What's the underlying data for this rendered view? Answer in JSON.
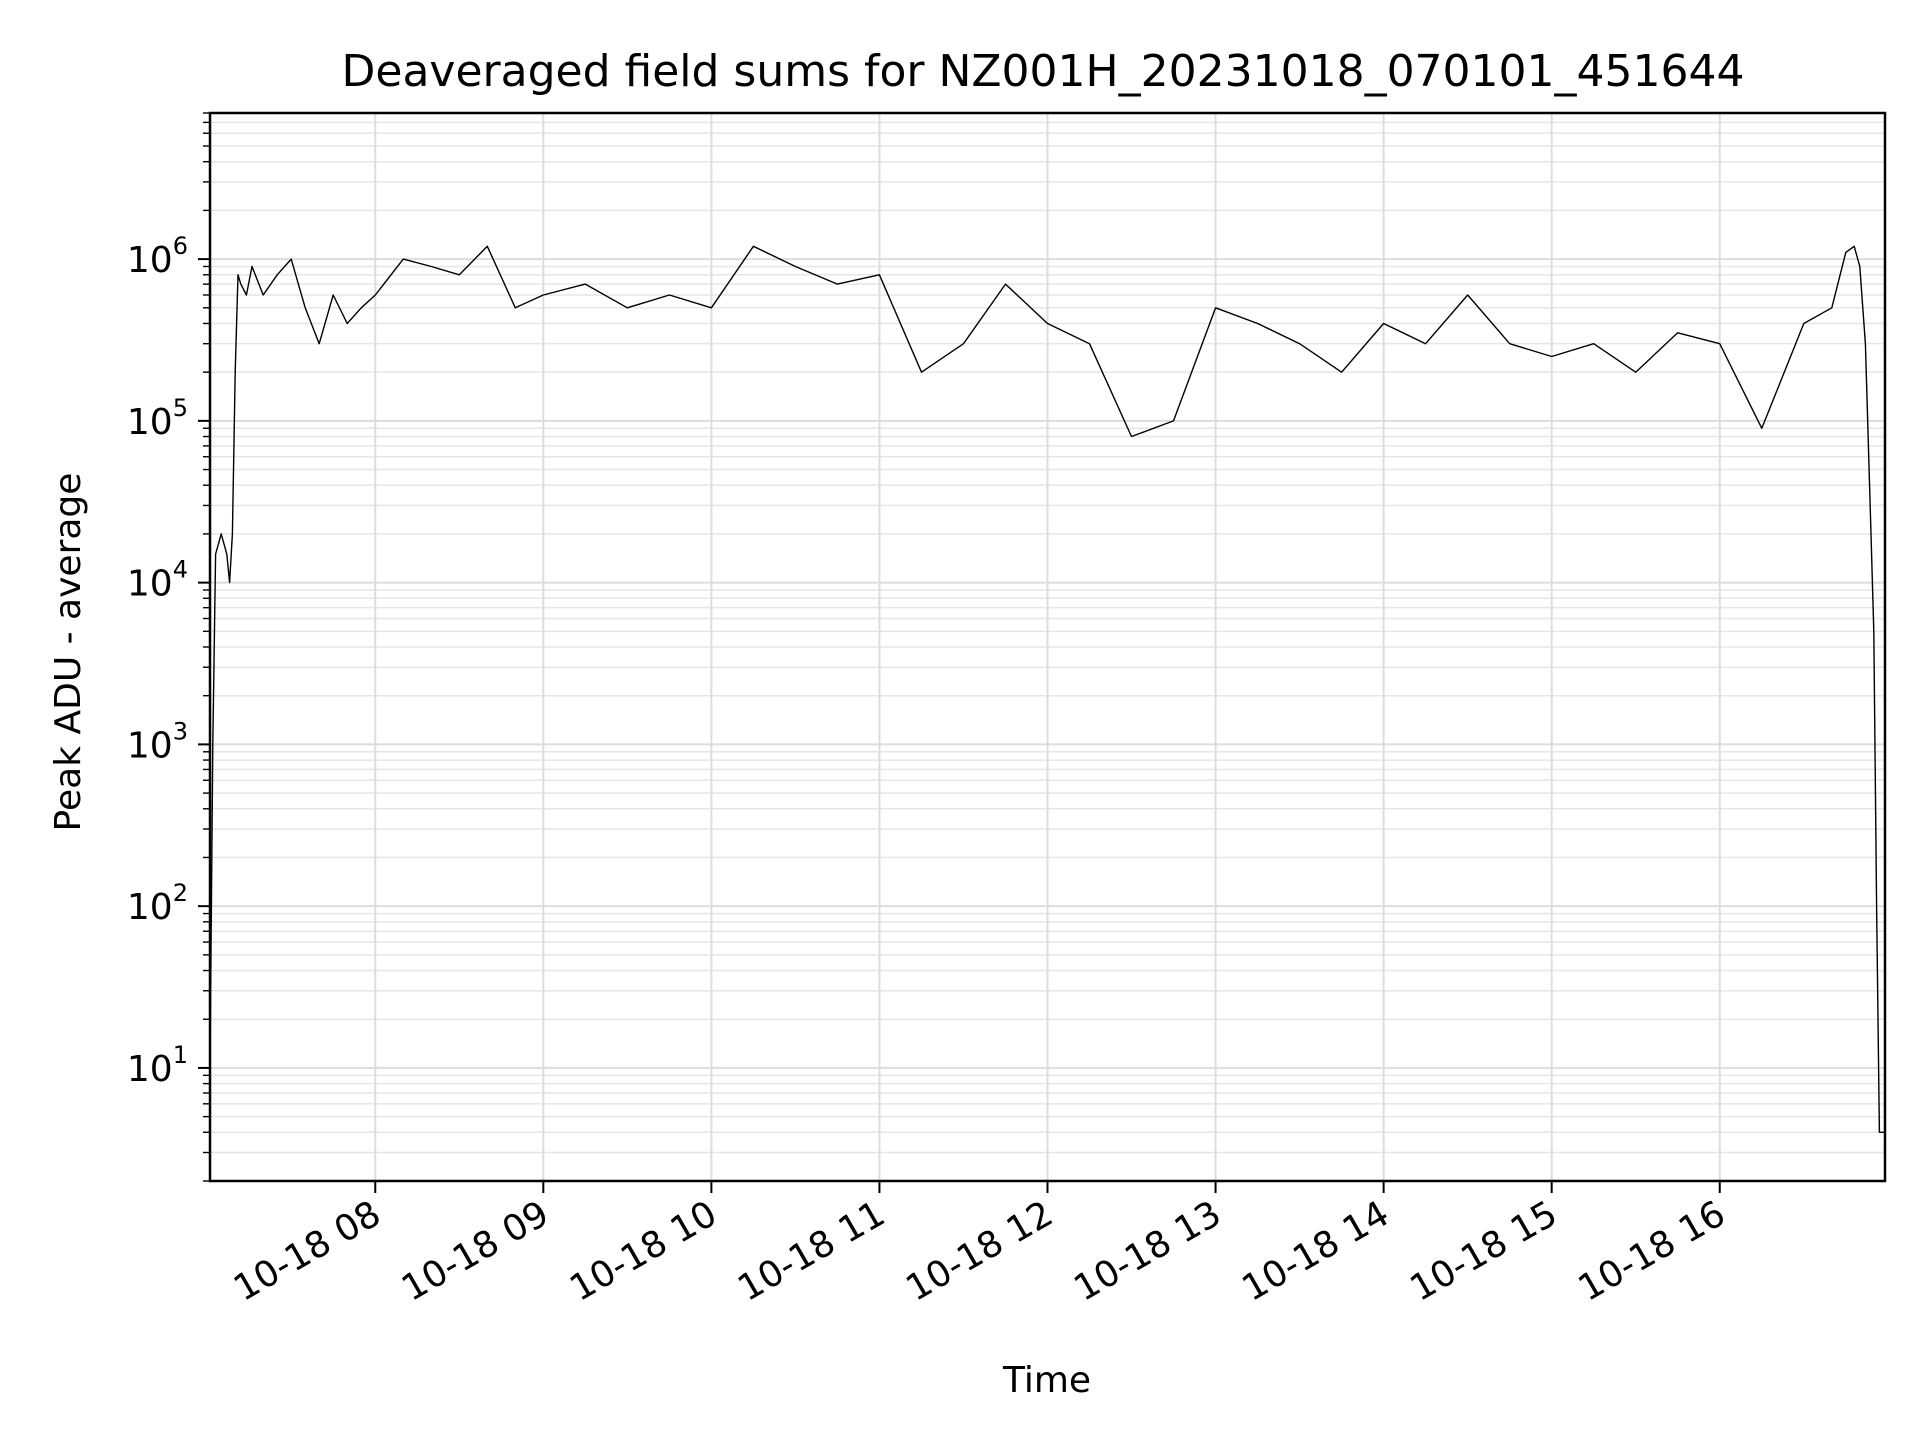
{
  "chart_data": {
    "type": "line",
    "title": "Deaveraged field sums for NZ001H_20231018_070101_451644",
    "xlabel": "Time",
    "ylabel": "Peak ADU - average",
    "yscale": "log",
    "ylim": [
      2,
      8000000
    ],
    "xlim": [
      "2023-10-18 07:01",
      "2023-10-18 16:59"
    ],
    "grid": "major and minor",
    "x_tick_labels": [
      "10-18 08",
      "10-18 09",
      "10-18 10",
      "10-18 11",
      "10-18 12",
      "10-18 13",
      "10-18 14",
      "10-18 15",
      "10-18 16"
    ],
    "x_tick_values": [
      "2023-10-18 08:00",
      "2023-10-18 09:00",
      "2023-10-18 10:00",
      "2023-10-18 11:00",
      "2023-10-18 12:00",
      "2023-10-18 13:00",
      "2023-10-18 14:00",
      "2023-10-18 15:00",
      "2023-10-18 16:00"
    ],
    "y_tick_labels": [
      {
        "base": "10",
        "exp": "1",
        "value": 10
      },
      {
        "base": "10",
        "exp": "2",
        "value": 100
      },
      {
        "base": "10",
        "exp": "3",
        "value": 1000
      },
      {
        "base": "10",
        "exp": "4",
        "value": 10000
      },
      {
        "base": "10",
        "exp": "5",
        "value": 100000
      },
      {
        "base": "10",
        "exp": "6",
        "value": 1000000
      }
    ],
    "series": [
      {
        "color": "#000000",
        "x": [
          "2023-10-18 07:01",
          "2023-10-18 07:02",
          "2023-10-18 07:03",
          "2023-10-18 07:05",
          "2023-10-18 07:07",
          "2023-10-18 07:08",
          "2023-10-18 07:09",
          "2023-10-18 07:10",
          "2023-10-18 07:11",
          "2023-10-18 07:12",
          "2023-10-18 07:14",
          "2023-10-18 07:16",
          "2023-10-18 07:20",
          "2023-10-18 07:25",
          "2023-10-18 07:30",
          "2023-10-18 07:35",
          "2023-10-18 07:40",
          "2023-10-18 07:45",
          "2023-10-18 07:50",
          "2023-10-18 07:55",
          "2023-10-18 08:00",
          "2023-10-18 08:10",
          "2023-10-18 08:20",
          "2023-10-18 08:30",
          "2023-10-18 08:40",
          "2023-10-18 08:50",
          "2023-10-18 09:00",
          "2023-10-18 09:15",
          "2023-10-18 09:30",
          "2023-10-18 09:45",
          "2023-10-18 10:00",
          "2023-10-18 10:15",
          "2023-10-18 10:30",
          "2023-10-18 10:45",
          "2023-10-18 11:00",
          "2023-10-18 11:15",
          "2023-10-18 11:30",
          "2023-10-18 11:45",
          "2023-10-18 12:00",
          "2023-10-18 12:15",
          "2023-10-18 12:30",
          "2023-10-18 12:45",
          "2023-10-18 13:00",
          "2023-10-18 13:15",
          "2023-10-18 13:30",
          "2023-10-18 13:45",
          "2023-10-18 14:00",
          "2023-10-18 14:15",
          "2023-10-18 14:30",
          "2023-10-18 14:45",
          "2023-10-18 15:00",
          "2023-10-18 15:15",
          "2023-10-18 15:30",
          "2023-10-18 15:45",
          "2023-10-18 16:00",
          "2023-10-18 16:15",
          "2023-10-18 16:30",
          "2023-10-18 16:40",
          "2023-10-18 16:45",
          "2023-10-18 16:48",
          "2023-10-18 16:50",
          "2023-10-18 16:52",
          "2023-10-18 16:54",
          "2023-10-18 16:55",
          "2023-10-18 16:56",
          "2023-10-18 16:57",
          "2023-10-18 16:59"
        ],
        "y": [
          10,
          1000,
          15000,
          20000,
          15000,
          10000,
          20000,
          200000,
          800000,
          700000,
          600000,
          900000,
          600000,
          800000,
          1000000,
          500000,
          300000,
          600000,
          400000,
          500000,
          600000,
          1000000,
          900000,
          800000,
          1200000,
          500000,
          600000,
          700000,
          500000,
          600000,
          500000,
          1200000,
          900000,
          700000,
          800000,
          200000,
          300000,
          700000,
          400000,
          300000,
          80000,
          100000,
          500000,
          400000,
          300000,
          200000,
          400000,
          300000,
          600000,
          300000,
          250000,
          300000,
          200000,
          350000,
          300000,
          90000,
          400000,
          500000,
          1100000,
          1200000,
          900000,
          300000,
          20000,
          5000,
          100,
          4,
          4
        ]
      }
    ]
  }
}
